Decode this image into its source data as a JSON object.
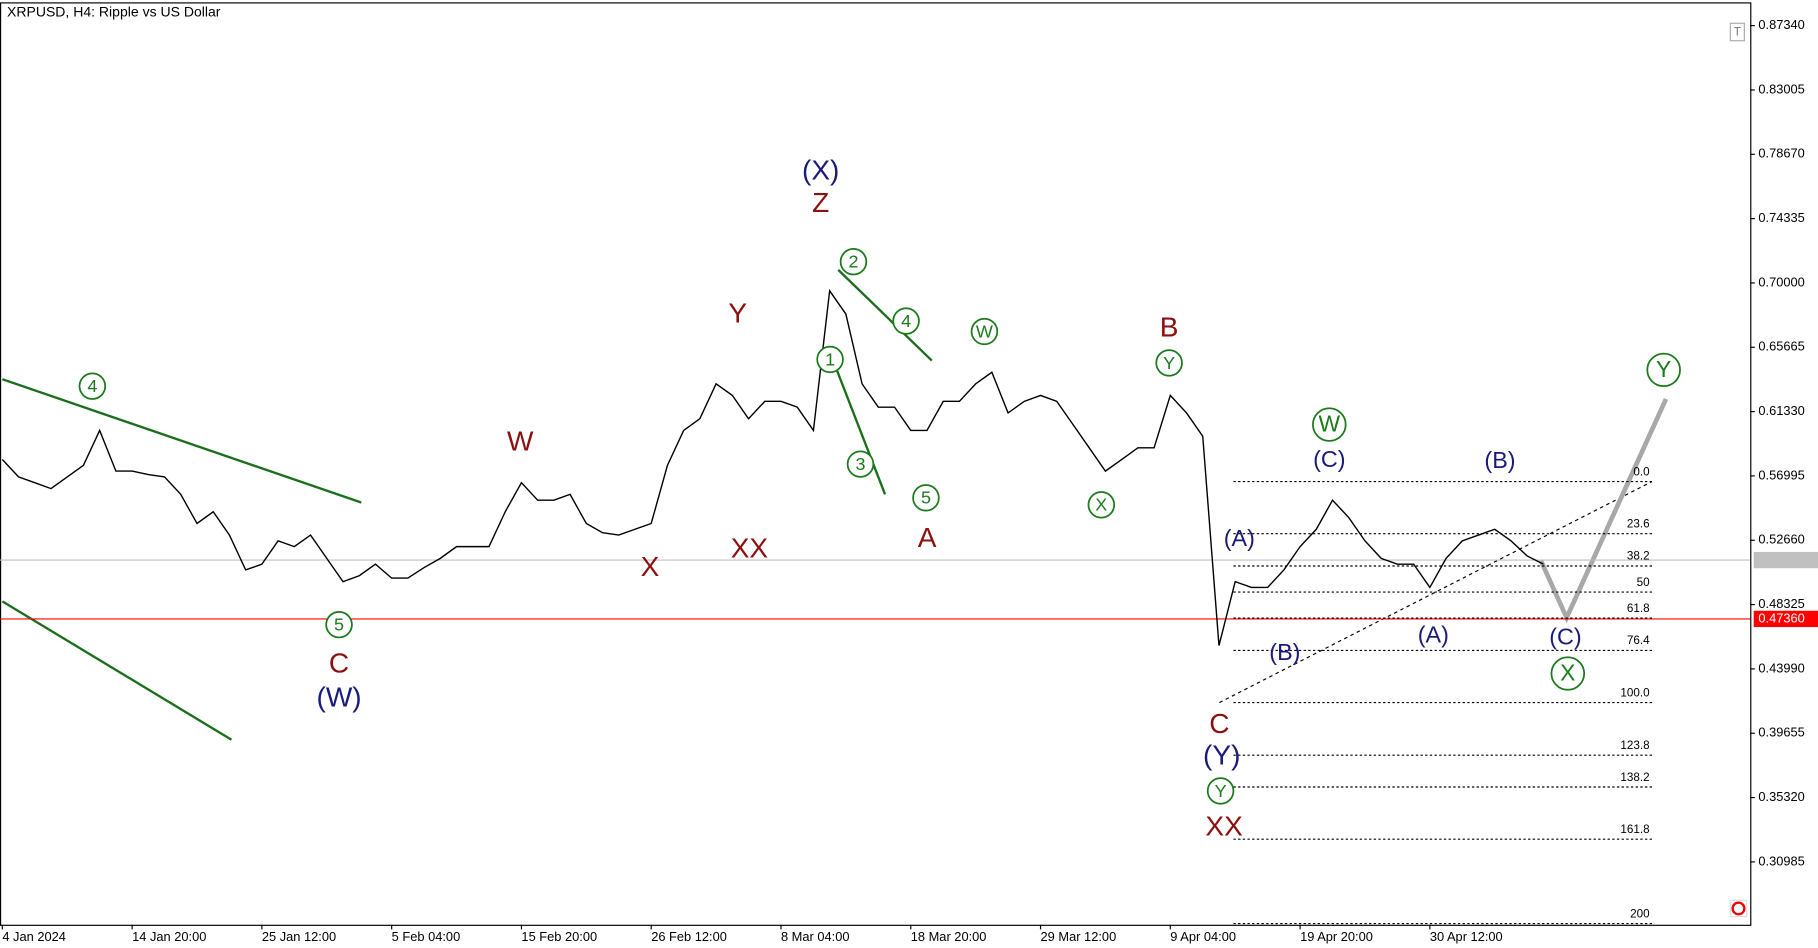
{
  "chart_data": {
    "type": "line",
    "title": "XRPUSD, H4:  Ripple vs US Dollar",
    "categories": [
      "4 Jan 2024",
      null,
      null,
      null,
      null,
      null,
      null,
      null,
      "14 Jan 20:00",
      null,
      null,
      null,
      null,
      null,
      null,
      null,
      "25 Jan 12:00",
      null,
      null,
      null,
      null,
      null,
      null,
      null,
      "5 Feb 04:00",
      null,
      null,
      null,
      null,
      null,
      null,
      null,
      "15 Feb 20:00",
      null,
      null,
      null,
      null,
      null,
      null,
      null,
      "26 Feb 12:00",
      null,
      null,
      null,
      null,
      null,
      null,
      null,
      "8 Mar 04:00",
      null,
      null,
      null,
      null,
      null,
      null,
      null,
      "18 Mar 20:00",
      null,
      null,
      null,
      null,
      null,
      null,
      null,
      "29 Mar 12:00",
      null,
      null,
      null,
      null,
      null,
      null,
      null,
      "9 Apr 04:00",
      null,
      null,
      null,
      null,
      null,
      null,
      null,
      "19 Apr 20:00",
      null,
      null,
      null,
      null,
      null,
      null,
      null,
      "30 Apr 12:00",
      null,
      null,
      null,
      null,
      null,
      null,
      null
    ],
    "values": [
      0.581,
      0.5693,
      0.5654,
      0.5614,
      0.5693,
      0.5771,
      0.6006,
      0.5732,
      0.5732,
      0.5709,
      0.5693,
      0.5575,
      0.5379,
      0.5458,
      0.5301,
      0.5066,
      0.5105,
      0.5262,
      0.5223,
      0.5301,
      0.5144,
      0.4987,
      0.5027,
      0.5105,
      0.5011,
      0.5011,
      0.5082,
      0.5144,
      0.5223,
      0.5223,
      0.5223,
      0.5458,
      0.5654,
      0.5536,
      0.5536,
      0.5575,
      0.5379,
      0.5317,
      0.5301,
      0.534,
      0.5379,
      0.5771,
      0.6006,
      0.6085,
      0.632,
      0.6242,
      0.6085,
      0.6202,
      0.6202,
      0.6163,
      0.6006,
      0.6947,
      0.679,
      0.632,
      0.6163,
      0.6163,
      0.6006,
      0.6006,
      0.6202,
      0.6202,
      0.632,
      0.6398,
      0.6124,
      0.6202,
      0.6242,
      0.6202,
      0.6046,
      0.5889,
      0.5732,
      0.581,
      0.5889,
      0.5889,
      0.6242,
      0.6124,
      0.5967,
      0.4556,
      0.4987,
      0.4948,
      0.4948,
      0.5066,
      0.5223,
      0.534,
      0.5536,
      0.5419,
      0.5262,
      0.5144,
      0.5105,
      0.5105,
      0.4948,
      0.5144,
      0.5262,
      0.5301,
      0.534,
      0.5262,
      0.516,
      0.5105
    ],
    "color": "#000000",
    "ylim": [
      0.2675,
      0.8891
    ],
    "yticks": [
      {
        "value": 0.8734,
        "label": "0.87340"
      },
      0.83005,
      {
        "value": 0.7867,
        "label": "0.78670"
      },
      0.74335,
      {
        "value": 0.7,
        "label": "0.70000"
      },
      0.65665,
      {
        "value": 0.6133,
        "label": "0.61330"
      },
      0.56995,
      {
        "value": 0.5266,
        "label": "0.52660"
      },
      0.48325,
      {
        "value": 0.4399,
        "label": "0.43990"
      },
      0.39655,
      {
        "value": 0.3532,
        "label": "0.35320"
      },
      0.30985
    ],
    "price_lines": [
      {
        "value": 0.51324,
        "color": "#c0c0c0"
      },
      {
        "value": 0.4736,
        "label": "0.47360",
        "color": "#ff0000"
      }
    ],
    "fib_levels": [
      {
        "value": 0,
        "label": "0.0"
      },
      23.6,
      38.2,
      50,
      61.8,
      76.4,
      {
        "value": 100,
        "label": "100.0"
      },
      123.8,
      138.2,
      161.8,
      200
    ],
    "annotations": [
      {
        "text": "Z",
        "color": "#8b1010"
      },
      {
        "text": "Y",
        "color": "#8b1010"
      },
      {
        "text": "W",
        "color": "#8b1010"
      },
      {
        "text": "X",
        "color": "#8b1010"
      },
      {
        "text": "XX",
        "color": "#8b1010"
      },
      {
        "text": "A",
        "color": "#8b1010"
      },
      {
        "text": "B",
        "color": "#8b1010"
      },
      {
        "text": "C",
        "color": "#8b1010"
      },
      {
        "text": "C",
        "color": "#8b1010"
      },
      {
        "text": "XX",
        "color": "#8b1010"
      },
      {
        "text": "(X)",
        "color": "#1a1a7a"
      },
      {
        "text": "(W)",
        "color": "#1a1a7a"
      },
      {
        "text": "(Y)",
        "color": "#1a1a7a"
      },
      {
        "text": "(A)",
        "color": "#1a1a7a"
      },
      {
        "text": "(B)",
        "color": "#1a1a7a"
      },
      {
        "text": "(C)",
        "color": "#1a1a7a"
      },
      {
        "text": "(A)",
        "color": "#1a1a7a"
      },
      {
        "text": "(B)",
        "color": "#1a1a7a"
      },
      {
        "text": "(C)",
        "color": "#1a1a7a"
      },
      {
        "text": "4",
        "color": "#1b7a1b",
        "circled": true
      },
      {
        "text": "5",
        "color": "#1b7a1b",
        "circled": true
      },
      {
        "text": "1",
        "color": "#1b7a1b",
        "circled": true
      },
      {
        "text": "2",
        "color": "#1b7a1b",
        "circled": true
      },
      {
        "text": "3",
        "color": "#1b7a1b",
        "circled": true
      },
      {
        "text": "4",
        "color": "#1b7a1b",
        "circled": true
      },
      {
        "text": "5",
        "color": "#1b7a1b",
        "circled": true
      },
      {
        "text": "W",
        "color": "#1b7a1b",
        "circled": true
      },
      {
        "text": "X",
        "color": "#1b7a1b",
        "circled": true
      },
      {
        "text": "Y",
        "color": "#1b7a1b",
        "circled": true
      },
      {
        "text": "Y",
        "color": "#1b7a1b",
        "circled": true
      },
      {
        "text": "W",
        "color": "#1b7a1b",
        "circled": true
      },
      {
        "text": "X",
        "color": "#1b7a1b",
        "circled": true
      },
      {
        "text": "Y",
        "color": "#1b7a1b",
        "circled": true
      }
    ]
  }
}
